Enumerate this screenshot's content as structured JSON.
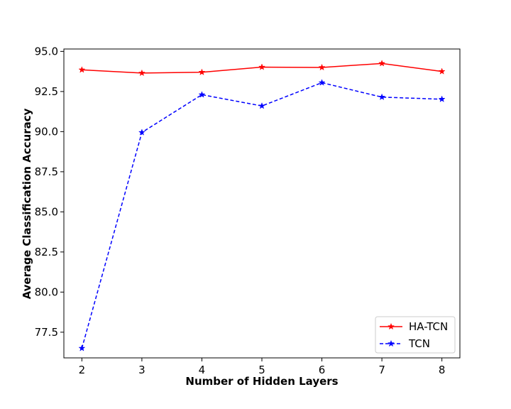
{
  "chart_data": {
    "type": "line",
    "xlabel": "Number of Hidden Layers",
    "ylabel": "Average Classification Accuracy",
    "x": [
      2,
      3,
      4,
      5,
      6,
      7,
      8
    ],
    "xlim": [
      1.7,
      8.3
    ],
    "ylim": [
      75.9,
      95.15
    ],
    "xticks": [
      "2",
      "3",
      "4",
      "5",
      "6",
      "7",
      "8"
    ],
    "yticks": [
      "77.5",
      "80.0",
      "82.5",
      "85.0",
      "87.5",
      "90.0",
      "92.5",
      "95.0"
    ],
    "grid": false,
    "legend_position": "lower-right",
    "series": [
      {
        "name": "HA-TCN",
        "values": [
          93.85,
          93.65,
          93.7,
          94.02,
          94.0,
          94.25,
          93.75
        ],
        "color": "#ff0000",
        "linestyle": "solid",
        "marker": "star"
      },
      {
        "name": "TCN",
        "values": [
          76.5,
          89.95,
          92.3,
          91.6,
          93.05,
          92.15,
          92.02
        ],
        "color": "#0000ff",
        "linestyle": "dashed",
        "marker": "star"
      }
    ]
  }
}
